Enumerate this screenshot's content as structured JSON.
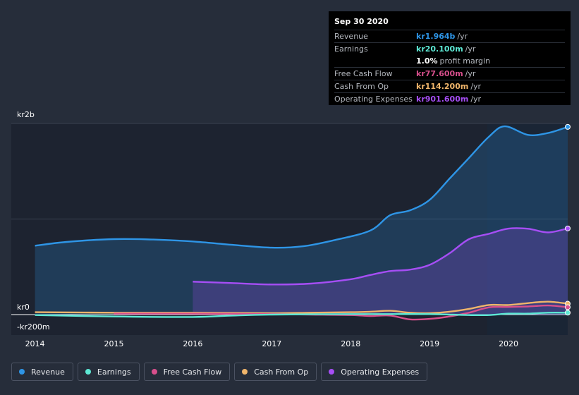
{
  "tooltip": {
    "date": "Sep 30 2020",
    "rows": [
      {
        "label": "Revenue",
        "value": "kr1.964b",
        "unit": "/yr",
        "color": "#2e95e6"
      },
      {
        "label": "Earnings",
        "value": "kr20.100m",
        "unit": "/yr",
        "color": "#5de8d4"
      },
      {
        "label": "",
        "value": "1.0%",
        "unit": "profit margin",
        "color": "#ffffff"
      },
      {
        "label": "Free Cash Flow",
        "value": "kr77.600m",
        "unit": "/yr",
        "color": "#d84f8c"
      },
      {
        "label": "Cash From Op",
        "value": "kr114.200m",
        "unit": "/yr",
        "color": "#f0b56b"
      },
      {
        "label": "Operating Expenses",
        "value": "kr901.600m",
        "unit": "/yr",
        "color": "#a64ef5"
      }
    ]
  },
  "legend": [
    {
      "label": "Revenue",
      "color": "#2e95e6"
    },
    {
      "label": "Earnings",
      "color": "#5de8d4"
    },
    {
      "label": "Free Cash Flow",
      "color": "#d84f8c"
    },
    {
      "label": "Cash From Op",
      "color": "#f0b56b"
    },
    {
      "label": "Operating Expenses",
      "color": "#a64ef5"
    }
  ],
  "chart_data": {
    "type": "area",
    "y_tick_labels": [
      "kr2b",
      "kr0",
      "-kr200m"
    ],
    "y_ticks": [
      2000,
      0,
      -200
    ],
    "ylim": [
      -200,
      2000
    ],
    "xlim": [
      2013.7,
      2020.75
    ],
    "x_tick_labels": [
      "2014",
      "2015",
      "2016",
      "2017",
      "2018",
      "2019",
      "2020"
    ],
    "x_ticks": [
      2014,
      2015,
      2016,
      2017,
      2018,
      2019,
      2020
    ],
    "forecast_start": 2019.73,
    "series": [
      {
        "name": "Revenue",
        "color": "#2e95e6",
        "fill": true,
        "x": [
          2014,
          2014.4,
          2015,
          2015.5,
          2016,
          2016.5,
          2017,
          2017.4,
          2017.8,
          2018.25,
          2018.5,
          2018.75,
          2019,
          2019.25,
          2019.5,
          2019.75,
          2019.95,
          2020.25,
          2020.5,
          2020.75
        ],
        "y": [
          720,
          760,
          790,
          785,
          765,
          730,
          700,
          715,
          780,
          880,
          1040,
          1090,
          1200,
          1420,
          1640,
          1860,
          1970,
          1880,
          1900,
          1964
        ]
      },
      {
        "name": "Operating Expenses",
        "color": "#a64ef5",
        "fill": true,
        "x": [
          2016,
          2016.5,
          2017,
          2017.5,
          2018,
          2018.25,
          2018.5,
          2018.75,
          2019,
          2019.25,
          2019.5,
          2019.75,
          2020,
          2020.25,
          2020.5,
          2020.75
        ],
        "y": [
          345,
          330,
          315,
          325,
          370,
          415,
          455,
          470,
          520,
          640,
          790,
          845,
          900,
          898,
          860,
          901.6
        ]
      },
      {
        "name": "Cash From Op",
        "color": "#f0b56b",
        "fill": false,
        "x": [
          2014,
          2015,
          2016,
          2017,
          2017.5,
          2018,
          2018.25,
          2018.5,
          2018.75,
          2019,
          2019.25,
          2019.5,
          2019.75,
          2020,
          2020.25,
          2020.5,
          2020.75
        ],
        "y": [
          25,
          20,
          20,
          15,
          20,
          25,
          30,
          40,
          20,
          15,
          30,
          60,
          100,
          100,
          120,
          135,
          114.2
        ]
      },
      {
        "name": "Free Cash Flow",
        "color": "#d84f8c",
        "fill": false,
        "x": [
          2015,
          2016,
          2017,
          2017.5,
          2018,
          2018.25,
          2018.5,
          2018.75,
          2019,
          2019.25,
          2019.5,
          2019.75,
          2020,
          2020.25,
          2020.5,
          2020.75
        ],
        "y": [
          10,
          10,
          5,
          0,
          -5,
          -15,
          -10,
          -50,
          -45,
          -20,
          20,
          75,
          80,
          85,
          95,
          77.6
        ]
      },
      {
        "name": "Earnings",
        "color": "#5de8d4",
        "fill": false,
        "x": [
          2014,
          2015,
          2016,
          2016.5,
          2017,
          2018,
          2018.5,
          2019,
          2019.5,
          2019.75,
          2020,
          2020.25,
          2020.5,
          2020.75
        ],
        "y": [
          -5,
          -20,
          -25,
          -10,
          0,
          5,
          5,
          5,
          -5,
          -5,
          10,
          10,
          20,
          20.1
        ]
      }
    ]
  }
}
